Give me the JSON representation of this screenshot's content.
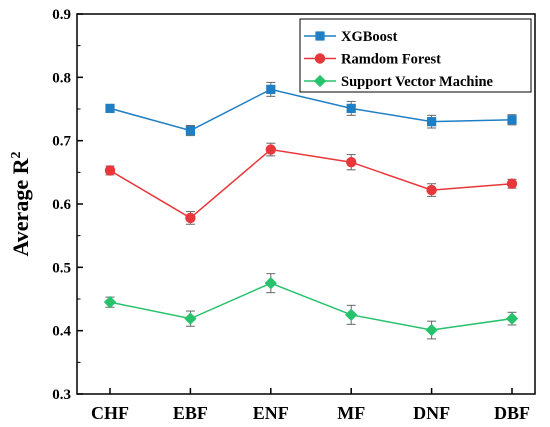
{
  "chart_data": {
    "type": "line",
    "title": "",
    "xlabel": "",
    "ylabel": "Average R",
    "ylabel_superscript": "2",
    "categories": [
      "CHF",
      "EBF",
      "ENF",
      "MF",
      "DNF",
      "DBF"
    ],
    "ylim": [
      0.3,
      0.9
    ],
    "yticks": [
      "0.3",
      "0.4",
      "0.5",
      "0.6",
      "0.7",
      "0.8",
      "0.9"
    ],
    "legend_position": "top-right",
    "series": [
      {
        "name": "XGBoost",
        "color": "#1f7fc4",
        "marker": "square",
        "values": [
          0.751,
          0.716,
          0.781,
          0.751,
          0.73,
          0.733
        ],
        "errors": [
          0.004,
          0.008,
          0.011,
          0.011,
          0.01,
          0.008
        ]
      },
      {
        "name": "Ramdom Forest",
        "color": "#e8373a",
        "marker": "circle",
        "values": [
          0.653,
          0.578,
          0.686,
          0.666,
          0.622,
          0.632
        ],
        "errors": [
          0.007,
          0.01,
          0.01,
          0.012,
          0.01,
          0.007
        ]
      },
      {
        "name": "Support Vector Machine",
        "color": "#27c26c",
        "marker": "diamond",
        "values": [
          0.445,
          0.419,
          0.475,
          0.425,
          0.401,
          0.419
        ],
        "errors": [
          0.008,
          0.012,
          0.015,
          0.015,
          0.014,
          0.01
        ]
      }
    ]
  }
}
